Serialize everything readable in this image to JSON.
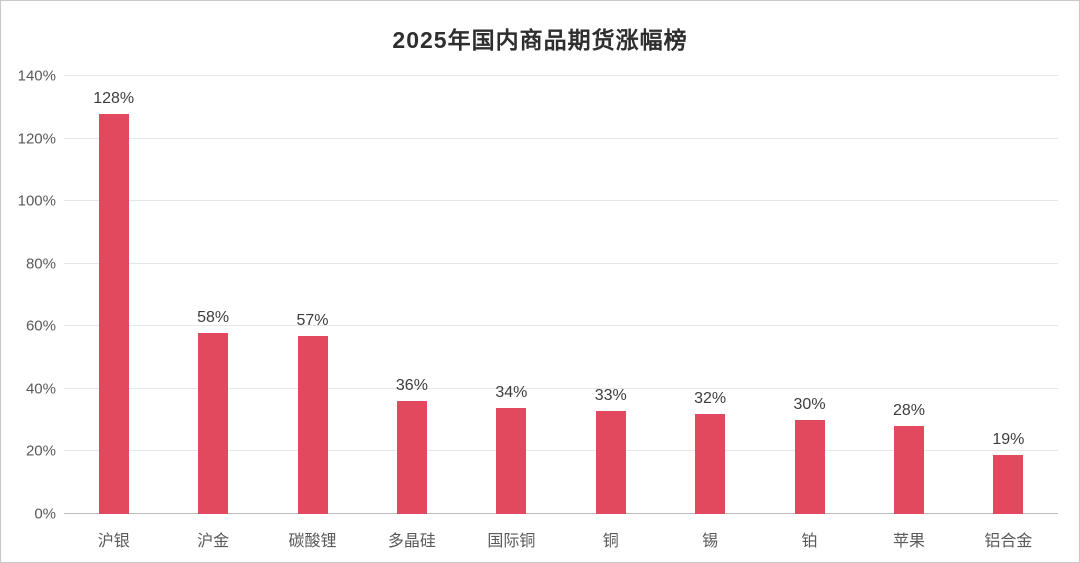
{
  "title": "2025年国内商品期货涨幅榜",
  "chart_data": {
    "type": "bar",
    "title": "2025年国内商品期货涨幅榜",
    "categories": [
      "沪银",
      "沪金",
      "碳酸锂",
      "多晶硅",
      "国际铜",
      "铜",
      "锡",
      "铂",
      "苹果",
      "铝合金"
    ],
    "values": [
      128,
      58,
      57,
      36,
      34,
      33,
      32,
      30,
      28,
      19
    ],
    "data_labels": [
      "128%",
      "58%",
      "57%",
      "36%",
      "34%",
      "33%",
      "32%",
      "30%",
      "28%",
      "19%"
    ],
    "xlabel": "",
    "ylabel": "",
    "ylim": [
      0,
      140
    ],
    "ytick_step": 20,
    "ytick_labels": [
      "0%",
      "20%",
      "40%",
      "60%",
      "80%",
      "100%",
      "120%",
      "140%"
    ],
    "grid": "horizontal",
    "legend_position": "none",
    "bar_color": "#e3495e"
  },
  "colors": {
    "bar": "#e3495e",
    "gridline": "#e7e7e7",
    "axis_line": "#bdbdbd",
    "title_text": "#2e2e2e",
    "value_label_text": "#3d3d3d",
    "tick_text": "#595959",
    "border": "#c9c9c9",
    "background": "#ffffff"
  }
}
